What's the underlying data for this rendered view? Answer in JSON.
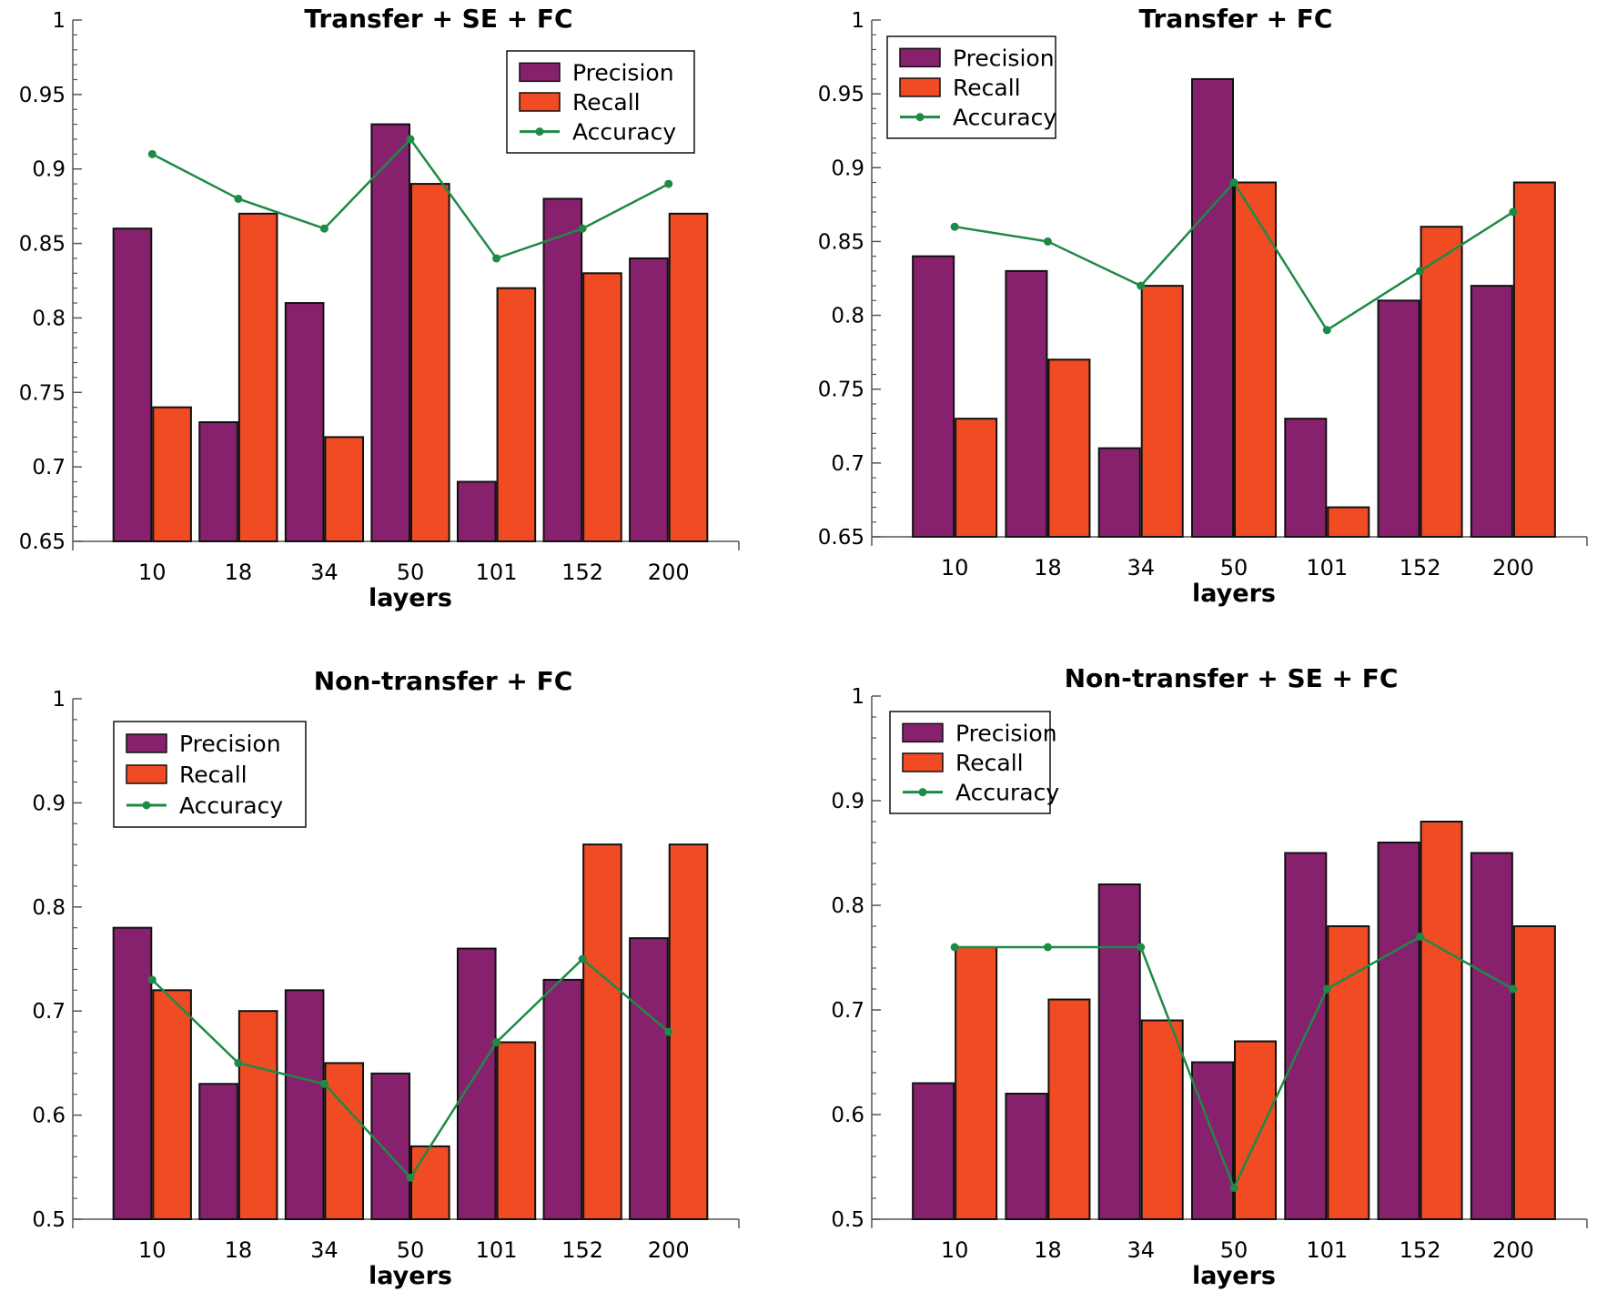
{
  "figure": {
    "colors": {
      "precision": "#87216e",
      "recall": "#f04b22",
      "accuracy": "#1d8a45"
    }
  },
  "chart_data": [
    {
      "type": "bar",
      "title": "Transfer + SE + FC",
      "xlabel": "layers",
      "ylabel": "",
      "categories": [
        "10",
        "18",
        "34",
        "50",
        "101",
        "152",
        "200"
      ],
      "ylim": [
        0.65,
        1
      ],
      "yticks": [
        "0.65",
        "0.7",
        "0.75",
        "0.8",
        "0.85",
        "0.9",
        "0.95",
        "1"
      ],
      "legend_position": "top-right",
      "series": [
        {
          "name": "Precision",
          "kind": "bar",
          "values": [
            0.86,
            0.73,
            0.81,
            0.93,
            0.69,
            0.88,
            0.84
          ]
        },
        {
          "name": "Recall",
          "kind": "bar",
          "values": [
            0.74,
            0.87,
            0.72,
            0.89,
            0.82,
            0.83,
            0.87
          ]
        },
        {
          "name": "Accuracy",
          "kind": "line",
          "values": [
            0.91,
            0.88,
            0.86,
            0.92,
            0.84,
            0.86,
            0.89
          ]
        }
      ]
    },
    {
      "type": "bar",
      "title": "Transfer + FC",
      "xlabel": "layers",
      "ylabel": "",
      "categories": [
        "10",
        "18",
        "34",
        "50",
        "101",
        "152",
        "200"
      ],
      "ylim": [
        0.65,
        1
      ],
      "yticks": [
        "0.65",
        "0.7",
        "0.75",
        "0.8",
        "0.85",
        "0.9",
        "0.95",
        "1"
      ],
      "legend_position": "top-left",
      "series": [
        {
          "name": "Precision",
          "kind": "bar",
          "values": [
            0.84,
            0.83,
            0.71,
            0.96,
            0.73,
            0.81,
            0.82
          ]
        },
        {
          "name": "Recall",
          "kind": "bar",
          "values": [
            0.73,
            0.77,
            0.82,
            0.89,
            0.67,
            0.86,
            0.89
          ]
        },
        {
          "name": "Accuracy",
          "kind": "line",
          "values": [
            0.86,
            0.85,
            0.82,
            0.89,
            0.79,
            0.83,
            0.87
          ]
        }
      ]
    },
    {
      "type": "bar",
      "title": "Non-transfer + FC",
      "xlabel": "layers",
      "ylabel": "",
      "categories": [
        "10",
        "18",
        "34",
        "50",
        "101",
        "152",
        "200"
      ],
      "ylim": [
        0.5,
        1
      ],
      "yticks": [
        "0.5",
        "0.6",
        "0.7",
        "0.8",
        "0.9",
        "1"
      ],
      "legend_position": "top-left",
      "series": [
        {
          "name": "Precision",
          "kind": "bar",
          "values": [
            0.78,
            0.63,
            0.72,
            0.64,
            0.76,
            0.73,
            0.77
          ]
        },
        {
          "name": "Recall",
          "kind": "bar",
          "values": [
            0.72,
            0.7,
            0.65,
            0.57,
            0.67,
            0.86,
            0.86
          ]
        },
        {
          "name": "Accuracy",
          "kind": "line",
          "values": [
            0.73,
            0.65,
            0.63,
            0.54,
            0.67,
            0.75,
            0.68
          ]
        }
      ]
    },
    {
      "type": "bar",
      "title": "Non-transfer + SE + FC",
      "xlabel": "layers",
      "ylabel": "",
      "categories": [
        "10",
        "18",
        "34",
        "50",
        "101",
        "152",
        "200"
      ],
      "ylim": [
        0.5,
        1
      ],
      "yticks": [
        "0.5",
        "0.6",
        "0.7",
        "0.8",
        "0.9",
        "1"
      ],
      "legend_position": "top-left",
      "series": [
        {
          "name": "Precision",
          "kind": "bar",
          "values": [
            0.63,
            0.62,
            0.82,
            0.65,
            0.85,
            0.86,
            0.85
          ]
        },
        {
          "name": "Recall",
          "kind": "bar",
          "values": [
            0.76,
            0.71,
            0.69,
            0.67,
            0.78,
            0.88,
            0.78
          ]
        },
        {
          "name": "Accuracy",
          "kind": "line",
          "values": [
            0.76,
            0.76,
            0.76,
            0.53,
            0.72,
            0.77,
            0.72
          ]
        }
      ]
    }
  ]
}
